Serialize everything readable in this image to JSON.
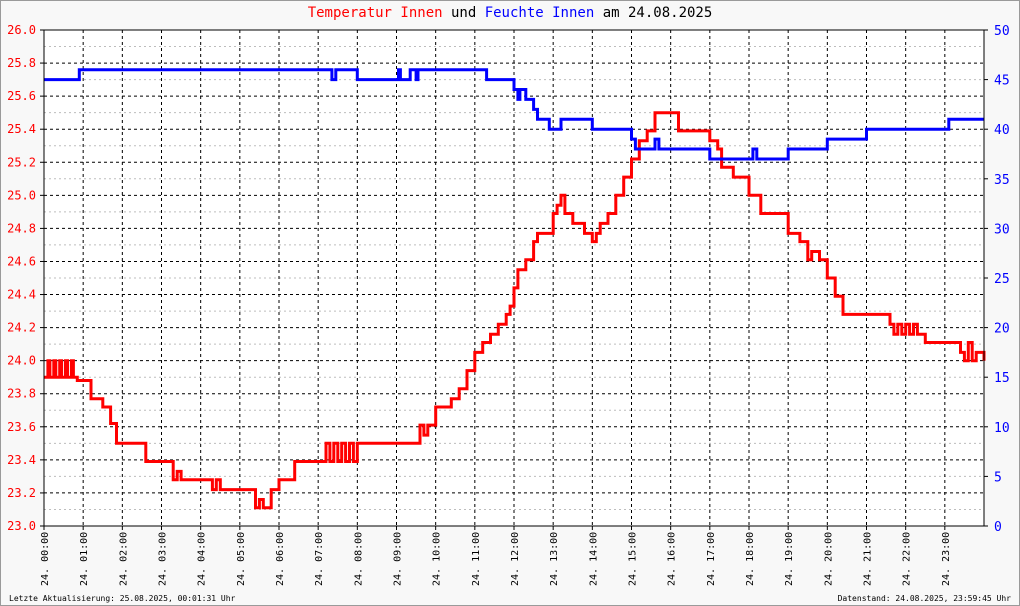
{
  "title": {
    "part1": "Temperatur Innen",
    "part2": " und ",
    "part3": "Feuchte Innen",
    "part4": " am 24.08.2025"
  },
  "footer": {
    "left": "Letzte Aktualisierung: 25.08.2025, 00:01:31 Uhr",
    "right": "Datenstand: 24.08.2025, 23:59:45 Uhr"
  },
  "colors": {
    "temperature": "#ff0000",
    "humidity": "#0000ff",
    "title_dark": "#000000"
  },
  "chart_data": {
    "type": "line",
    "title": "Temperatur Innen und Feuchte Innen am 24.08.2025",
    "grid": true,
    "x_ticks": [
      "24. 00:00",
      "24. 01:00",
      "24. 02:00",
      "24. 03:00",
      "24. 04:00",
      "24. 05:00",
      "24. 06:00",
      "24. 07:00",
      "24. 08:00",
      "24. 09:00",
      "24. 10:00",
      "24. 11:00",
      "24. 12:00",
      "24. 13:00",
      "24. 14:00",
      "24. 15:00",
      "24. 16:00",
      "24. 17:00",
      "24. 18:00",
      "24. 19:00",
      "24. 20:00",
      "24. 21:00",
      "24. 22:00",
      "24. 23:00"
    ],
    "xlim": [
      0,
      24
    ],
    "y_left": {
      "lim": [
        23.0,
        26.0
      ],
      "ticks": [
        "23.0",
        "23.2",
        "23.4",
        "23.6",
        "23.8",
        "24.0",
        "24.2",
        "24.4",
        "24.6",
        "24.8",
        "25.0",
        "25.2",
        "25.4",
        "25.6",
        "25.8",
        "26.0"
      ]
    },
    "y_right": {
      "lim": [
        0,
        50
      ],
      "ticks": [
        "0",
        "5",
        "10",
        "15",
        "20",
        "25",
        "30",
        "35",
        "40",
        "45",
        "50"
      ]
    },
    "series": [
      {
        "name": "Temperatur Innen",
        "axis": "left",
        "x": [
          0,
          0.1,
          0.15,
          0.25,
          0.3,
          0.4,
          0.45,
          0.55,
          0.6,
          0.7,
          0.75,
          0.85,
          0.9,
          1.2,
          1.5,
          1.6,
          1.7,
          1.8,
          1.85,
          2.5,
          2.6,
          3.2,
          3.3,
          3.4,
          3.5,
          4.2,
          4.3,
          4.4,
          4.5,
          5.3,
          5.4,
          5.5,
          5.6,
          5.8,
          6.0,
          6.2,
          6.4,
          6.5,
          7.1,
          7.2,
          7.3,
          7.4,
          7.5,
          7.6,
          7.7,
          7.8,
          7.9,
          8.0,
          8.2,
          8.4,
          9.5,
          9.6,
          9.7,
          9.8,
          10.0,
          10.1,
          10.4,
          10.6,
          10.8,
          11.0,
          11.2,
          11.4,
          11.6,
          11.8,
          11.9,
          12.0,
          12.1,
          12.3,
          12.5,
          12.6,
          13.0,
          13.1,
          13.2,
          13.3,
          13.5,
          13.8,
          14.0,
          14.1,
          14.2,
          14.4,
          14.6,
          14.8,
          15.0,
          15.2,
          15.4,
          15.6,
          15.8,
          16.0,
          16.2,
          16.8,
          17.0,
          17.2,
          17.3,
          17.6,
          18.0,
          18.3,
          19.0,
          19.3,
          19.5,
          19.6,
          19.8,
          20.0,
          20.2,
          20.4,
          21.6,
          21.7,
          21.8,
          21.9,
          22.0,
          22.1,
          22.2,
          22.3,
          22.5,
          22.7,
          23.3,
          23.4,
          23.5,
          23.6,
          23.7,
          23.8,
          24.0
        ],
        "y": [
          23.9,
          24.0,
          23.9,
          24.0,
          23.9,
          24.0,
          23.9,
          24.0,
          23.9,
          24.0,
          23.9,
          23.88,
          23.88,
          23.77,
          23.72,
          23.72,
          23.62,
          23.62,
          23.5,
          23.5,
          23.39,
          23.39,
          23.28,
          23.33,
          23.28,
          23.28,
          23.22,
          23.28,
          23.22,
          23.22,
          23.11,
          23.16,
          23.11,
          23.22,
          23.28,
          23.28,
          23.39,
          23.39,
          23.39,
          23.5,
          23.39,
          23.5,
          23.39,
          23.5,
          23.39,
          23.5,
          23.39,
          23.5,
          23.5,
          23.5,
          23.5,
          23.61,
          23.55,
          23.61,
          23.72,
          23.72,
          23.77,
          23.83,
          23.94,
          24.05,
          24.11,
          24.16,
          24.22,
          24.28,
          24.33,
          24.44,
          24.55,
          24.61,
          24.72,
          24.77,
          24.89,
          24.94,
          25.0,
          24.89,
          24.83,
          24.77,
          24.72,
          24.77,
          24.83,
          24.89,
          25.0,
          25.11,
          25.22,
          25.33,
          25.39,
          25.5,
          25.5,
          25.5,
          25.39,
          25.39,
          25.33,
          25.28,
          25.17,
          25.11,
          25.0,
          24.89,
          24.77,
          24.72,
          24.61,
          24.66,
          24.61,
          24.5,
          24.39,
          24.28,
          24.22,
          24.16,
          24.22,
          24.16,
          24.22,
          24.16,
          24.22,
          24.16,
          24.11,
          24.11,
          24.11,
          24.05,
          24.0,
          24.11,
          24.0,
          24.05,
          24.0
        ]
      },
      {
        "name": "Feuchte Innen",
        "axis": "right",
        "x": [
          0,
          0.85,
          0.9,
          7.3,
          7.35,
          7.45,
          8.0,
          9.0,
          9.05,
          9.1,
          9.2,
          9.3,
          9.35,
          9.5,
          9.55,
          9.65,
          9.7,
          10.0,
          11.2,
          11.3,
          11.9,
          12.0,
          12.1,
          12.15,
          12.3,
          12.5,
          12.6,
          12.7,
          12.9,
          13.1,
          13.2,
          13.5,
          14.0,
          14.2,
          14.5,
          15.0,
          15.1,
          15.3,
          15.5,
          15.6,
          15.7,
          15.8,
          16.0,
          16.8,
          17.0,
          17.2,
          18.0,
          18.1,
          18.2,
          18.5,
          19.0,
          19.5,
          20.0,
          21.0,
          22.0,
          23.0,
          23.1,
          24.0
        ],
        "y": [
          45,
          45,
          46,
          46,
          45,
          46,
          45,
          45,
          46,
          45,
          45,
          45,
          46,
          45,
          46,
          46,
          46,
          46,
          46,
          45,
          45,
          44,
          43,
          44,
          43,
          42,
          41,
          41,
          40,
          40,
          41,
          41,
          40,
          40,
          40,
          39,
          38,
          38,
          38,
          39,
          38,
          38,
          38,
          38,
          37,
          37,
          37,
          38,
          37,
          37,
          38,
          38,
          39,
          40,
          40,
          40,
          41,
          41
        ]
      }
    ]
  }
}
